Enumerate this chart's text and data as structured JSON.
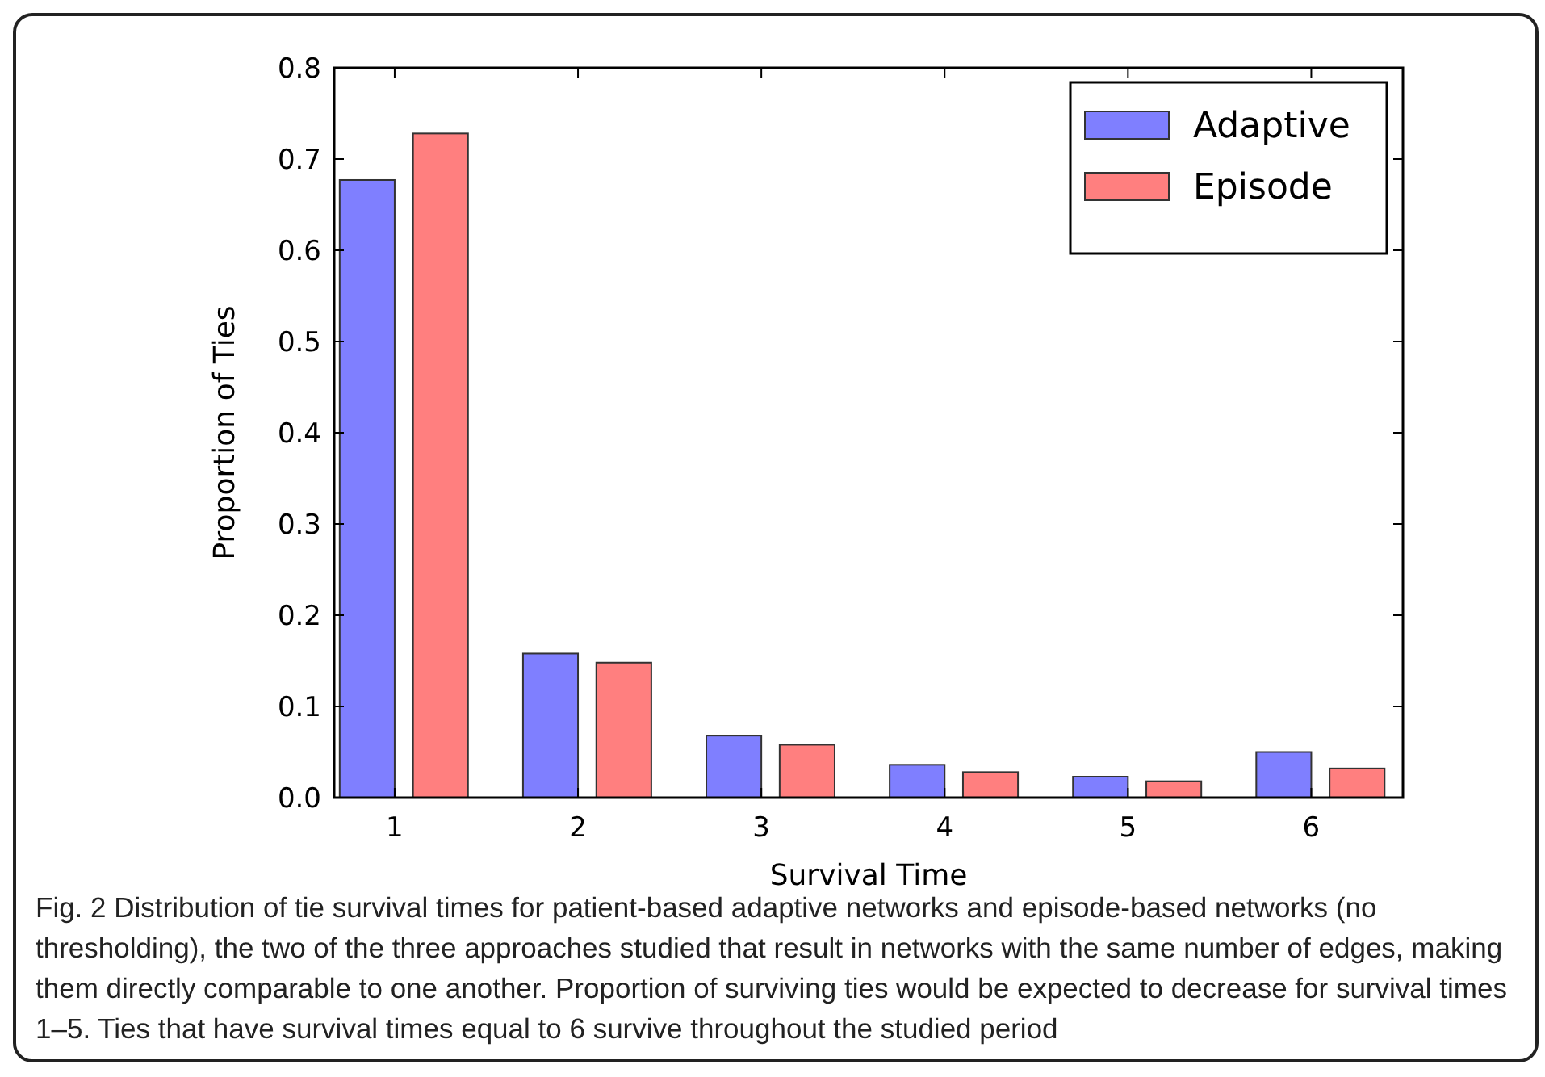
{
  "chart_data": {
    "type": "bar",
    "xlabel": "Survival Time",
    "ylabel": "Proportion of Ties",
    "x": [
      1,
      2,
      3,
      4,
      5,
      6
    ],
    "xlim": [
      0.67,
      6.5
    ],
    "xticks": [
      1,
      2,
      3,
      4,
      5,
      6
    ],
    "ylim": [
      0,
      0.8
    ],
    "yticks": [
      {
        "value": 0,
        "label": "0.0"
      },
      0.1,
      0.2,
      0.3,
      0.4,
      0.5,
      0.6,
      0.7,
      0.8
    ],
    "series": [
      {
        "name": "Adaptive",
        "color": "#7f7fff",
        "values": [
          0.677,
          0.158,
          0.068,
          0.036,
          0.023,
          0.05
        ]
      },
      {
        "name": "Episode",
        "color": "#ff7f7f",
        "values": [
          0.728,
          0.148,
          0.058,
          0.028,
          0.018,
          0.032
        ]
      }
    ],
    "legend": "top right",
    "grid": false,
    "annotations": [
      "Fig. 2 Distribution of tie survival times for patient-based adaptive networks and episode-based networks (no thresholding), the two of the three approaches studied that result in networks with the same number of edges, making them directly comparable to one another. Proportion of surviving ties would be expected to decrease for survival times 1–5. Ties that have survival times equal to 6 survive throughout the studied period"
    ]
  }
}
